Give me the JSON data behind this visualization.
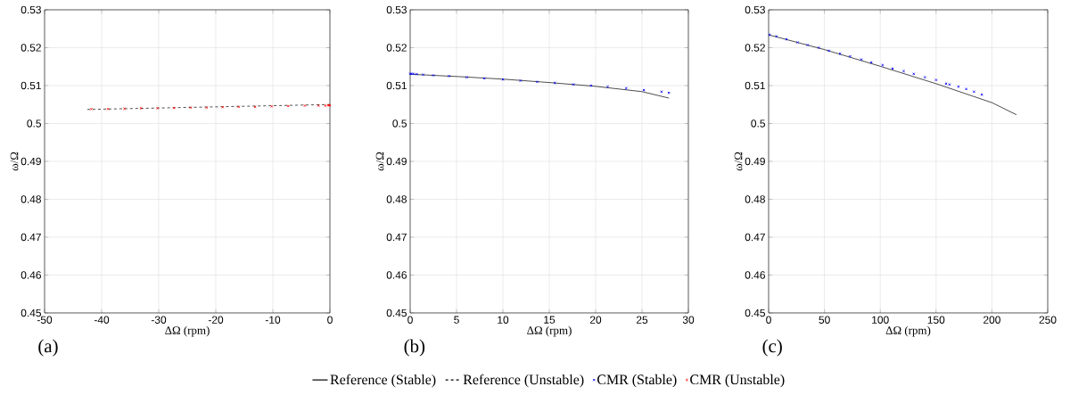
{
  "chart_data": [
    {
      "type": "line",
      "xlabel": "ΔΩ (rpm)",
      "ylabel": "ω/Ω",
      "annotations": [
        "(a)"
      ],
      "xlim": [
        -50,
        0
      ],
      "xticks": [
        -50,
        -40,
        -30,
        -20,
        -10,
        0
      ],
      "ylim": [
        0.45,
        0.53
      ],
      "yticks": [
        0.45,
        0.46,
        0.47,
        0.48,
        0.49,
        0.5,
        0.51,
        0.52,
        0.53
      ],
      "grid": true,
      "legend": "bottom",
      "series": [
        {
          "name": "Reference (Unstable)",
          "line_style": "dashed",
          "color": "#000000",
          "x": [
            -42.5,
            0
          ],
          "values": [
            0.5037,
            0.505
          ]
        },
        {
          "name": "CMR (Unstable)",
          "type": "scatter",
          "marker": "cross",
          "color": "#ff0000",
          "x": [
            -41.8,
            -38.9,
            -36,
            -33.1,
            -30.2,
            -27.3,
            -24.4,
            -21.6,
            -18.8,
            -16,
            -13.1,
            -10.2,
            -7.3,
            -4.4,
            -2,
            -0.8,
            -0.3,
            0
          ],
          "values": [
            0.5038,
            0.5038,
            0.5039,
            0.504,
            0.504,
            0.5041,
            0.5042,
            0.5042,
            0.5043,
            0.5044,
            0.5044,
            0.5045,
            0.5046,
            0.5047,
            0.5047,
            0.5047,
            0.5048,
            0.5048
          ]
        }
      ]
    },
    {
      "type": "line",
      "xlabel": "ΔΩ (rpm)",
      "ylabel": "ω/Ω",
      "annotations": [
        "(b)"
      ],
      "xlim": [
        0,
        30
      ],
      "xticks": [
        0,
        5,
        10,
        15,
        20,
        25,
        30
      ],
      "ylim": [
        0.45,
        0.53
      ],
      "yticks": [
        0.45,
        0.46,
        0.47,
        0.48,
        0.49,
        0.5,
        0.51,
        0.52,
        0.53
      ],
      "grid": true,
      "legend": "bottom",
      "series": [
        {
          "name": "Reference (Stable)",
          "line_style": "solid",
          "color": "#000000",
          "x": [
            0,
            5,
            10,
            15,
            20,
            25,
            27.9
          ],
          "values": [
            0.513,
            0.5124,
            0.5117,
            0.5108,
            0.5098,
            0.5084,
            0.5067
          ]
        },
        {
          "name": "CMR (Stable)",
          "type": "scatter",
          "marker": "cross",
          "color": "#0000ff",
          "x": [
            0,
            0.15,
            0.35,
            0.7,
            1.4,
            2.5,
            4.2,
            6.1,
            8,
            10,
            11.9,
            13.7,
            15.6,
            17.6,
            19.5,
            21.3,
            23.3,
            25.2,
            27.1,
            27.9
          ],
          "values": [
            0.5131,
            0.5131,
            0.5131,
            0.513,
            0.5129,
            0.5127,
            0.5125,
            0.5122,
            0.5119,
            0.5116,
            0.5113,
            0.511,
            0.5107,
            0.5103,
            0.51,
            0.5097,
            0.5093,
            0.5088,
            0.5084,
            0.5081
          ]
        }
      ]
    },
    {
      "type": "line",
      "xlabel": "ΔΩ (rpm)",
      "ylabel": "ω/Ω",
      "annotations": [
        "(c)"
      ],
      "xlim": [
        0,
        250
      ],
      "xticks": [
        0,
        50,
        100,
        150,
        200,
        250
      ],
      "ylim": [
        0.45,
        0.53
      ],
      "yticks": [
        0.45,
        0.46,
        0.47,
        0.48,
        0.49,
        0.5,
        0.51,
        0.52,
        0.53
      ],
      "grid": true,
      "series": [
        {
          "line_style": "solid",
          "color": "#000000",
          "x": [
            0,
            50,
            100,
            150,
            200,
            222
          ],
          "values": [
            0.5234,
            0.5195,
            0.5151,
            0.5105,
            0.5055,
            0.5023
          ]
        },
        {
          "type": "scatter",
          "marker": "cross",
          "color": "#0000ff",
          "x": [
            1,
            7,
            16,
            26,
            35,
            45,
            54,
            64,
            73,
            83,
            92,
            102,
            111,
            121,
            130,
            140,
            150,
            159,
            162,
            170,
            177,
            184,
            191
          ],
          "values": [
            0.5234,
            0.523,
            0.5222,
            0.5214,
            0.5207,
            0.52,
            0.5192,
            0.5184,
            0.5177,
            0.5169,
            0.5161,
            0.5154,
            0.5145,
            0.5138,
            0.5131,
            0.5122,
            0.5115,
            0.5105,
            0.5103,
            0.5097,
            0.5091,
            0.5084,
            0.5076
          ]
        }
      ]
    }
  ]
}
